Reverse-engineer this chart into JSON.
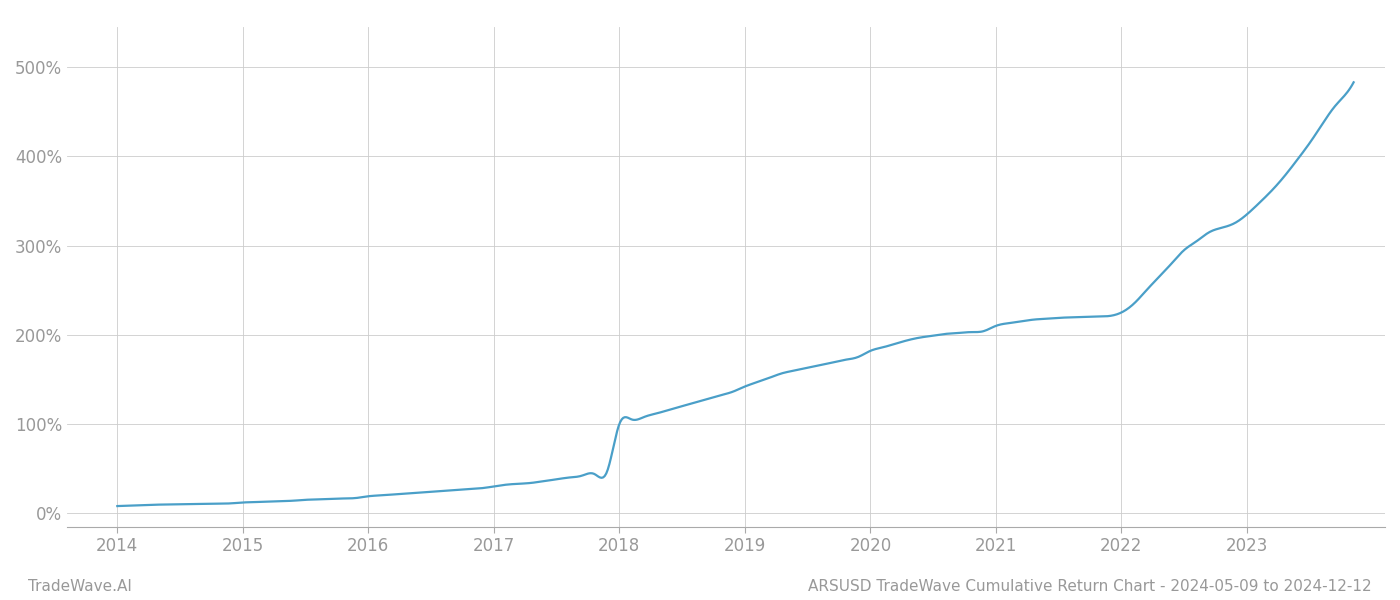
{
  "title": "ARSUSD TradeWave Cumulative Return Chart - 2024-05-09 to 2024-12-12",
  "watermark": "TradeWave.AI",
  "line_color": "#4a9fc8",
  "background_color": "#ffffff",
  "grid_color": "#cccccc",
  "x_years": [
    2014,
    2015,
    2016,
    2017,
    2018,
    2019,
    2020,
    2021,
    2022,
    2023
  ],
  "x_data": [
    2014.0,
    2014.1,
    2014.2,
    2014.3,
    2014.4,
    2014.5,
    2014.6,
    2014.7,
    2014.8,
    2014.9,
    2015.0,
    2015.1,
    2015.2,
    2015.3,
    2015.4,
    2015.5,
    2015.6,
    2015.7,
    2015.8,
    2015.9,
    2016.0,
    2016.1,
    2016.2,
    2016.3,
    2016.4,
    2016.5,
    2016.6,
    2016.7,
    2016.8,
    2016.9,
    2017.0,
    2017.1,
    2017.2,
    2017.3,
    2017.4,
    2017.5,
    2017.6,
    2017.7,
    2017.8,
    2017.9,
    2018.0,
    2018.1,
    2018.2,
    2018.3,
    2018.4,
    2018.5,
    2018.6,
    2018.7,
    2018.8,
    2018.9,
    2019.0,
    2019.1,
    2019.2,
    2019.3,
    2019.4,
    2019.5,
    2019.6,
    2019.7,
    2019.8,
    2019.9,
    2020.0,
    2020.1,
    2020.2,
    2020.3,
    2020.4,
    2020.5,
    2020.6,
    2020.7,
    2020.8,
    2020.9,
    2021.0,
    2021.1,
    2021.2,
    2021.3,
    2021.4,
    2021.5,
    2021.6,
    2021.7,
    2021.8,
    2021.9,
    2022.0,
    2022.1,
    2022.2,
    2022.3,
    2022.4,
    2022.5,
    2022.6,
    2022.7,
    2022.8,
    2022.9,
    2023.0,
    2023.1,
    2023.2,
    2023.3,
    2023.4,
    2023.5,
    2023.6,
    2023.7,
    2023.8,
    2023.85
  ],
  "y_data": [
    8,
    8.5,
    9,
    9.5,
    9.8,
    10,
    10.2,
    10.5,
    10.7,
    11,
    12,
    12.5,
    13,
    13.5,
    14,
    15,
    15.5,
    16,
    16.5,
    17,
    19,
    20,
    21,
    22,
    23,
    24,
    25,
    26,
    27,
    28,
    30,
    32,
    33,
    34,
    36,
    38,
    40,
    42,
    44,
    46,
    100,
    105,
    108,
    112,
    116,
    120,
    124,
    128,
    132,
    136,
    142,
    147,
    152,
    157,
    160,
    163,
    166,
    169,
    172,
    175,
    182,
    186,
    190,
    194,
    197,
    199,
    201,
    202,
    203,
    204,
    210,
    213,
    215,
    217,
    218,
    219,
    219.5,
    220,
    220.5,
    221,
    225,
    235,
    250,
    265,
    280,
    295,
    305,
    315,
    320,
    325,
    335,
    348,
    362,
    378,
    396,
    415,
    436,
    456,
    472,
    483
  ],
  "ylim": [
    -15,
    545
  ],
  "yticks": [
    0,
    100,
    200,
    300,
    400,
    500
  ],
  "xlim": [
    2013.6,
    2024.1
  ],
  "tick_label_color": "#999999",
  "tick_fontsize": 12,
  "watermark_fontsize": 11,
  "footer_fontsize": 11,
  "line_width": 1.6
}
